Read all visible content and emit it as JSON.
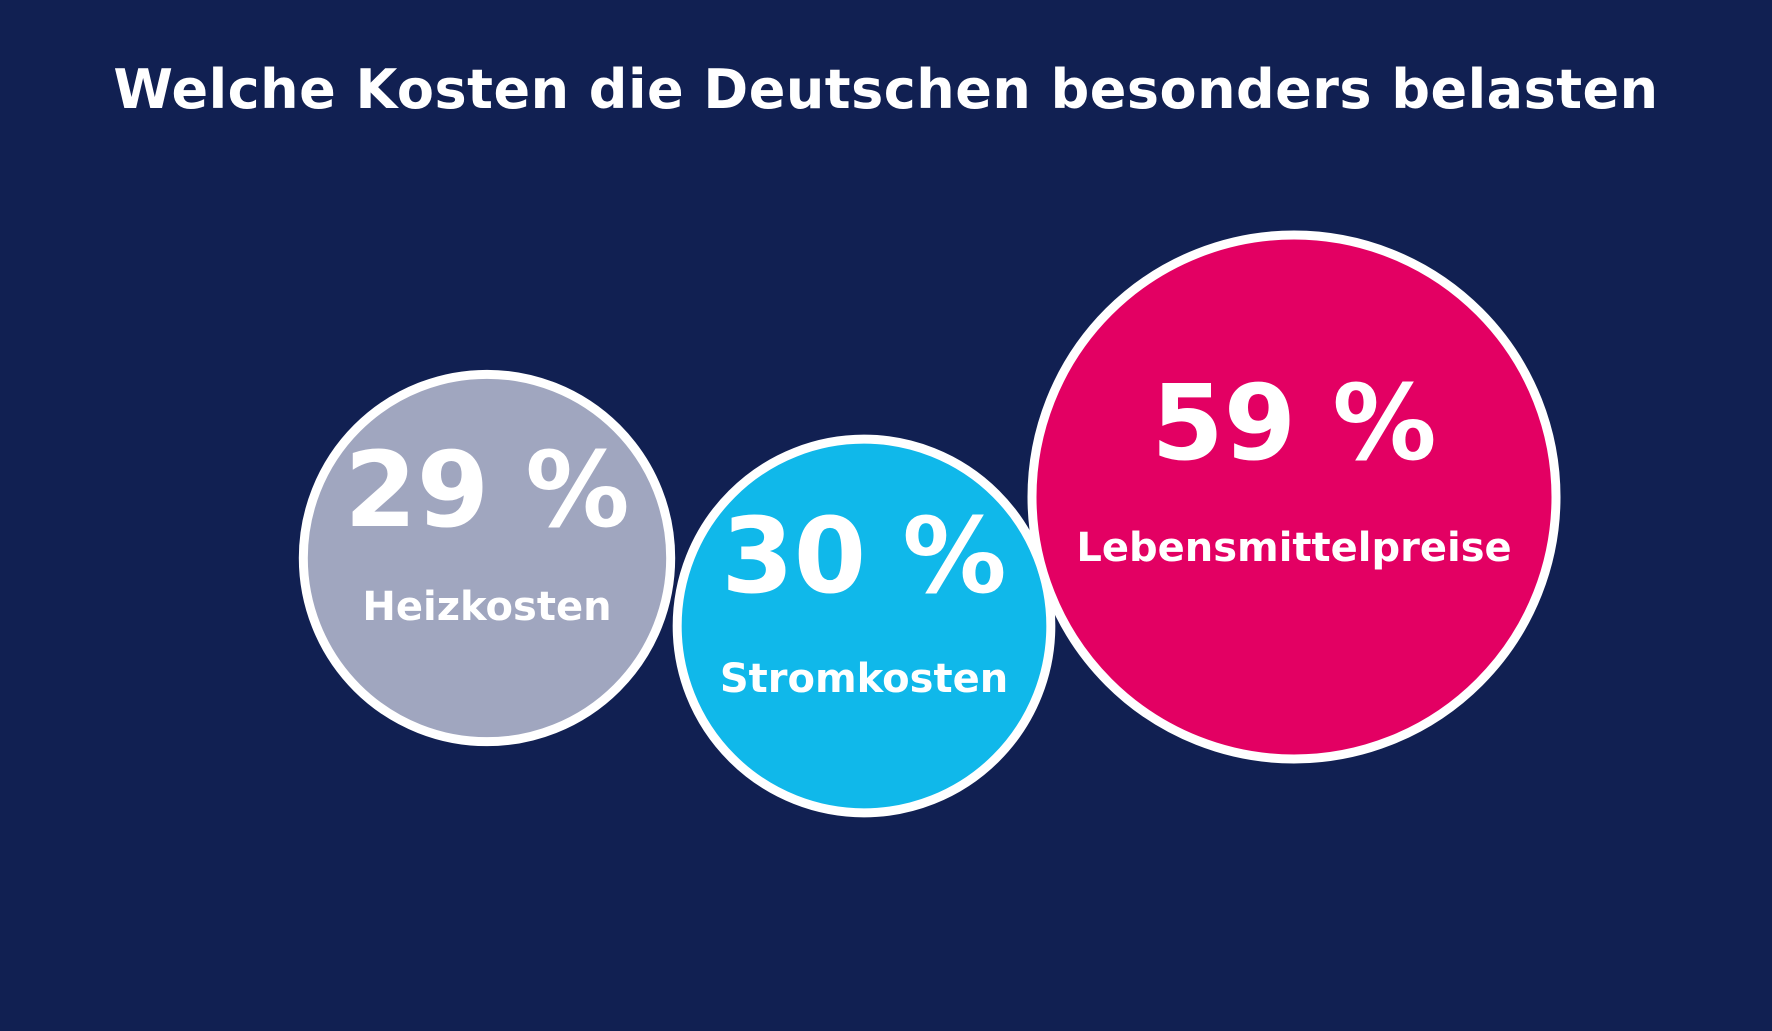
{
  "chart_data": {
    "type": "bubble",
    "title": "Welche Kosten die Deutschen besonders belasten",
    "unit": "%",
    "categories": [
      "Heizkosten",
      "Stromkosten",
      "Lebensmittelpreise"
    ],
    "values": [
      29,
      30,
      59
    ],
    "value_labels": [
      "29 %",
      "30 %",
      "59 %"
    ],
    "colors": [
      "#a0a6bf",
      "#10b8ea",
      "#e30063"
    ],
    "background": "#112052",
    "outline": "#ffffff",
    "grid": false,
    "legend": "none"
  }
}
